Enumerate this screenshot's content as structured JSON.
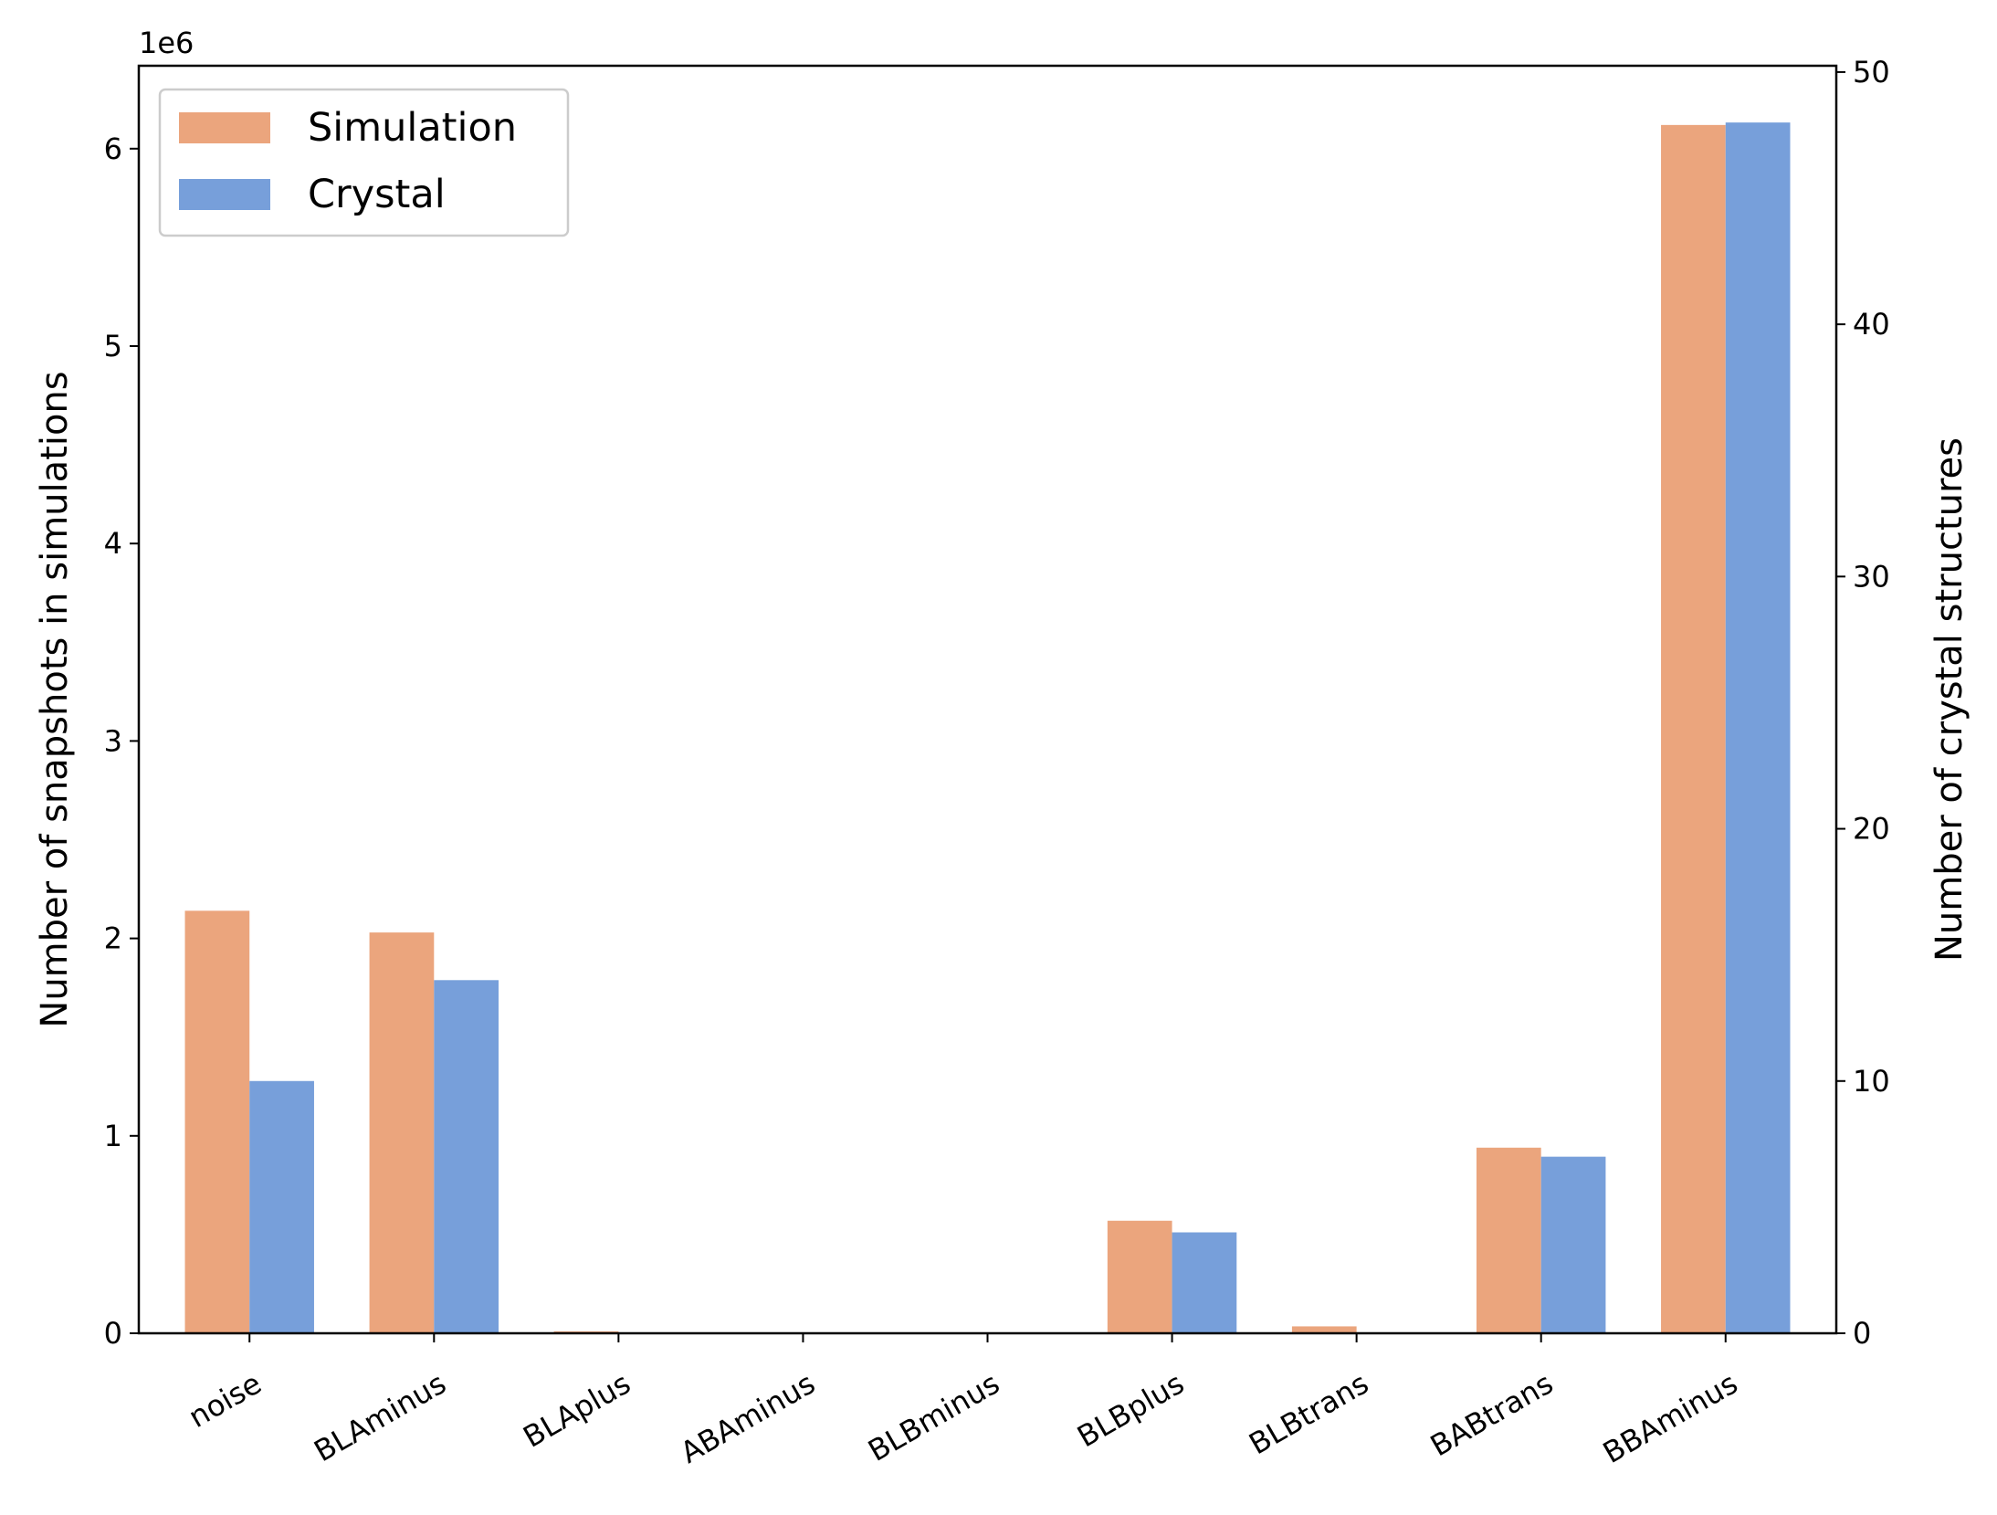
{
  "chart_data": {
    "type": "bar",
    "categories": [
      "noise",
      "BLAminus",
      "BLAplus",
      "ABAminus",
      "BLBminus",
      "BLBplus",
      "BLBtrans",
      "BABtrans",
      "BBAminus"
    ],
    "series": [
      {
        "name": "Simulation",
        "axis": "left",
        "color": "#EBA57D",
        "values": [
          2140000,
          2030000,
          10000,
          0,
          0,
          570000,
          35000,
          940000,
          6120000
        ]
      },
      {
        "name": "Crystal",
        "axis": "right",
        "color": "#779FDA",
        "values": [
          10,
          14,
          0,
          0,
          0,
          4,
          0,
          7,
          48
        ]
      }
    ],
    "ylabel": "Number of snapshots in simulations",
    "ylabel_right": "Number of crystal structures",
    "y_offset_label": "1e6",
    "ylim": [
      0,
      6420000
    ],
    "ylim_right": [
      0,
      50.25
    ],
    "yticks": [
      0,
      1000000,
      2000000,
      3000000,
      4000000,
      5000000,
      6000000
    ],
    "yticks_labels": [
      "0",
      "1",
      "2",
      "3",
      "4",
      "5",
      "6"
    ],
    "yticks_right": [
      0,
      10,
      20,
      30,
      40,
      50
    ],
    "yticks_right_labels": [
      "0",
      "10",
      "20",
      "30",
      "40",
      "50"
    ],
    "grid": false,
    "legend_position": "top-left",
    "xtick_rotation_deg": 30
  }
}
